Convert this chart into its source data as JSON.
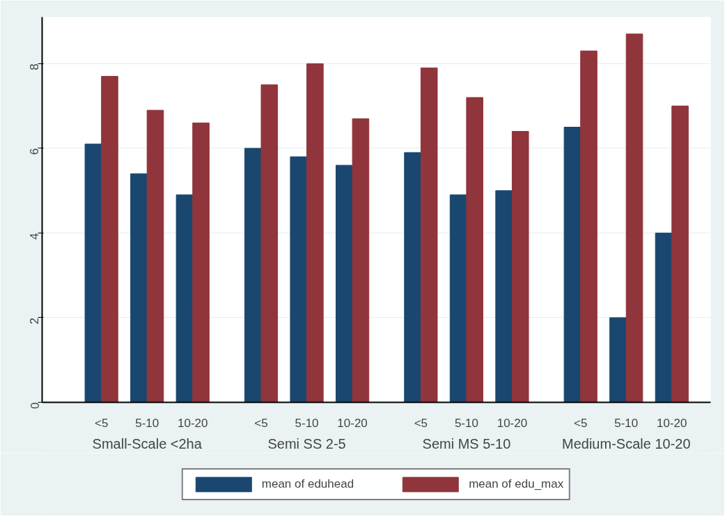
{
  "chart_data": {
    "type": "bar",
    "categories": [
      "<5",
      "5-10",
      "10-20",
      "<5",
      "5-10",
      "10-20",
      "<5",
      "5-10",
      "10-20",
      "<5",
      "5-10",
      "10-20"
    ],
    "annotations": [
      "Small-Scale <2ha",
      "Semi SS 2-5",
      "Semi MS 5-10",
      "Medium-Scale 10-20"
    ],
    "series": [
      {
        "name": "mean of eduhead",
        "color": "#1a476f",
        "values": [
          6.1,
          5.4,
          4.9,
          6.0,
          5.8,
          5.6,
          5.9,
          4.9,
          5.0,
          6.5,
          2.0,
          4.0
        ]
      },
      {
        "name": "mean of edu_max",
        "color": "#90353b",
        "values": [
          7.7,
          6.9,
          6.6,
          7.5,
          8.0,
          6.7,
          7.9,
          7.2,
          6.4,
          8.3,
          8.7,
          7.0
        ]
      }
    ],
    "ylim": [
      0,
      9.1
    ],
    "yticks": [
      0,
      2,
      4,
      6,
      8
    ],
    "grid": "y",
    "legend": "bottom"
  }
}
